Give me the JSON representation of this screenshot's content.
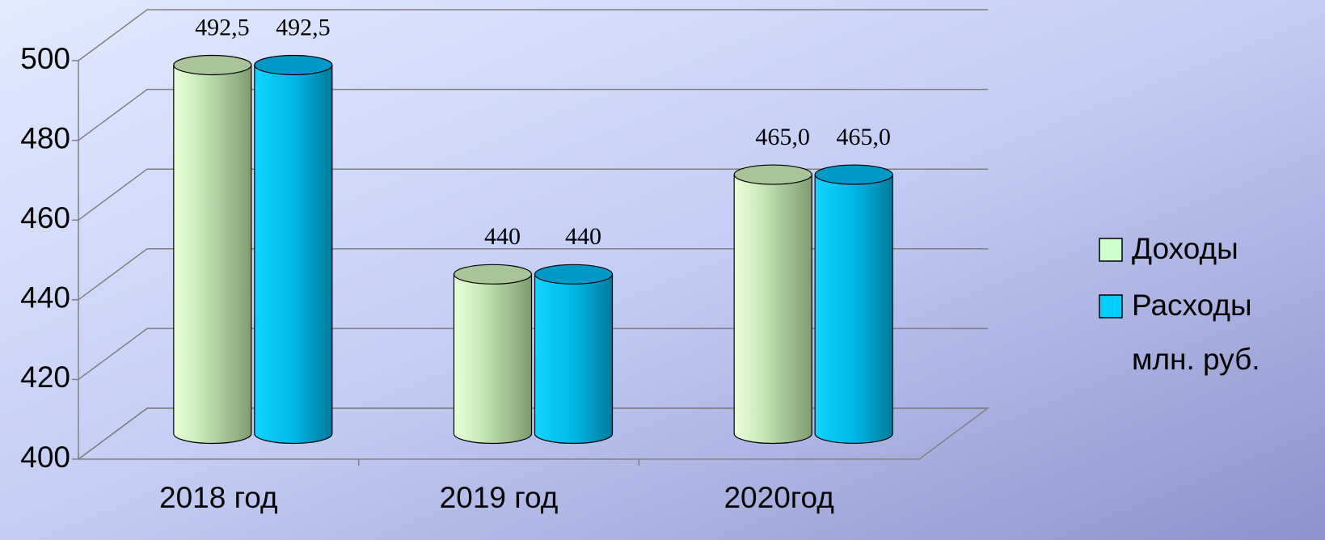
{
  "chart_data": {
    "type": "bar3d-cylinder",
    "categories": [
      "2018 год",
      "2019 год",
      "2020год"
    ],
    "series": [
      {
        "name": "Доходы",
        "color": "#ccffcc",
        "values": [
          492.5,
          440,
          465
        ],
        "value_labels": [
          "492,5",
          "440",
          "465,0"
        ]
      },
      {
        "name": "Расходы",
        "color": "#00ccff",
        "values": [
          492.5,
          440,
          465
        ],
        "value_labels": [
          "492,5",
          "440",
          "465,0"
        ]
      }
    ],
    "ylim": [
      400,
      500
    ],
    "yticks": [
      400,
      420,
      440,
      460,
      480,
      500
    ],
    "grid": true,
    "legend": "right",
    "unit_label": "млн. руб."
  }
}
